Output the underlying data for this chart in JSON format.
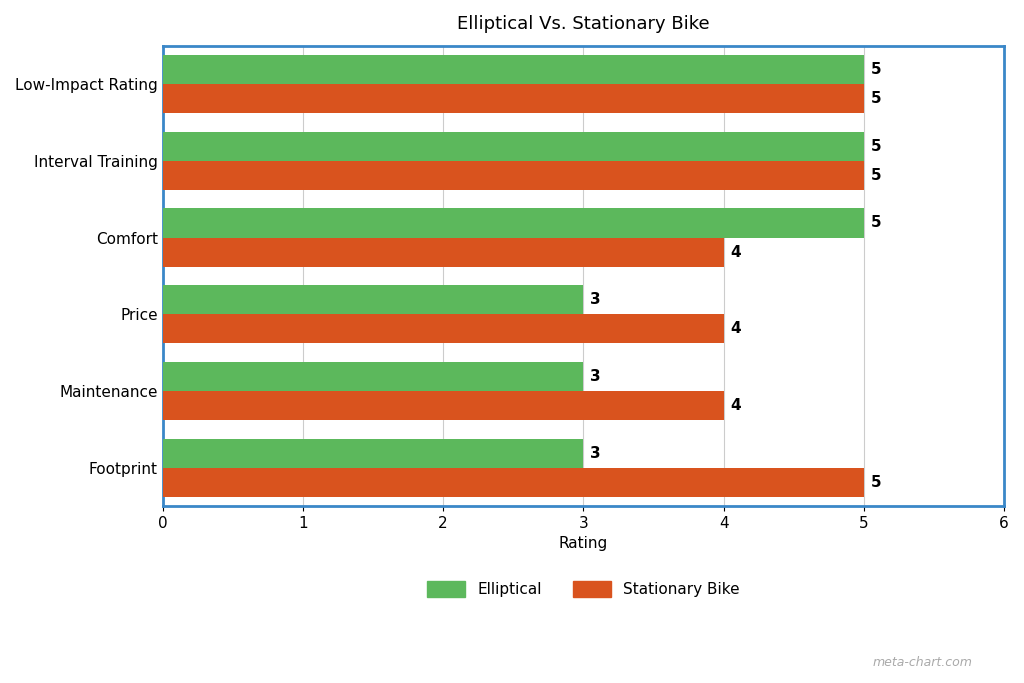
{
  "title": "Elliptical Vs. Stationary Bike",
  "categories": [
    "Low-Impact Rating",
    "Interval Training",
    "Comfort",
    "Price",
    "Maintenance",
    "Footprint"
  ],
  "elliptical_values": [
    5,
    5,
    5,
    3,
    3,
    3
  ],
  "bike_values": [
    5,
    5,
    4,
    4,
    4,
    5
  ],
  "elliptical_color": "#5cb85c",
  "bike_color": "#d9531e",
  "xlabel": "Rating",
  "xlim": [
    0,
    6
  ],
  "xticks": [
    0,
    1,
    2,
    3,
    4,
    5,
    6
  ],
  "bar_height": 0.38,
  "legend_labels": [
    "Elliptical",
    "Stationary Bike"
  ],
  "title_fontsize": 13,
  "label_fontsize": 11,
  "tick_fontsize": 11,
  "value_fontsize": 11,
  "border_color": "#3a87c8",
  "grid_color": "#cccccc",
  "background_color": "#ffffff",
  "watermark": "meta-chart.com"
}
